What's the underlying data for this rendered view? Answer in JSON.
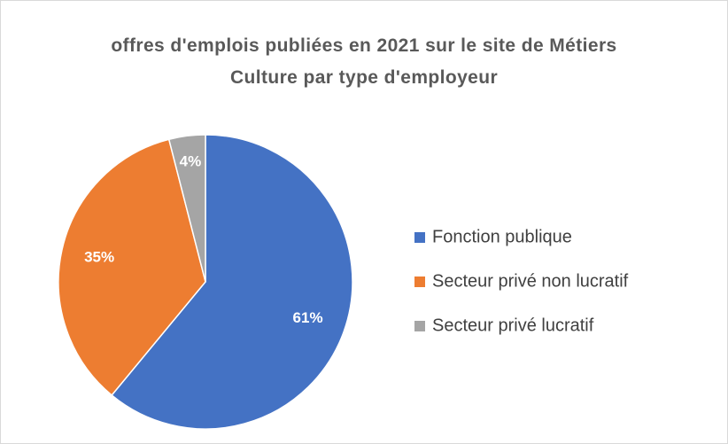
{
  "chart_data": {
    "type": "pie",
    "title": "offres d'emplois publiées en 2021 sur le site de Métiers Culture par type d'employeur",
    "categories": [
      "Fonction publique",
      "Secteur privé non lucratif",
      "Secteur privé lucratif"
    ],
    "values": [
      61,
      35,
      4
    ],
    "value_labels": [
      "61%",
      "35%",
      "4%"
    ],
    "colors": [
      "#4472c4",
      "#ed7d31",
      "#a5a5a5"
    ],
    "legend": "right"
  }
}
